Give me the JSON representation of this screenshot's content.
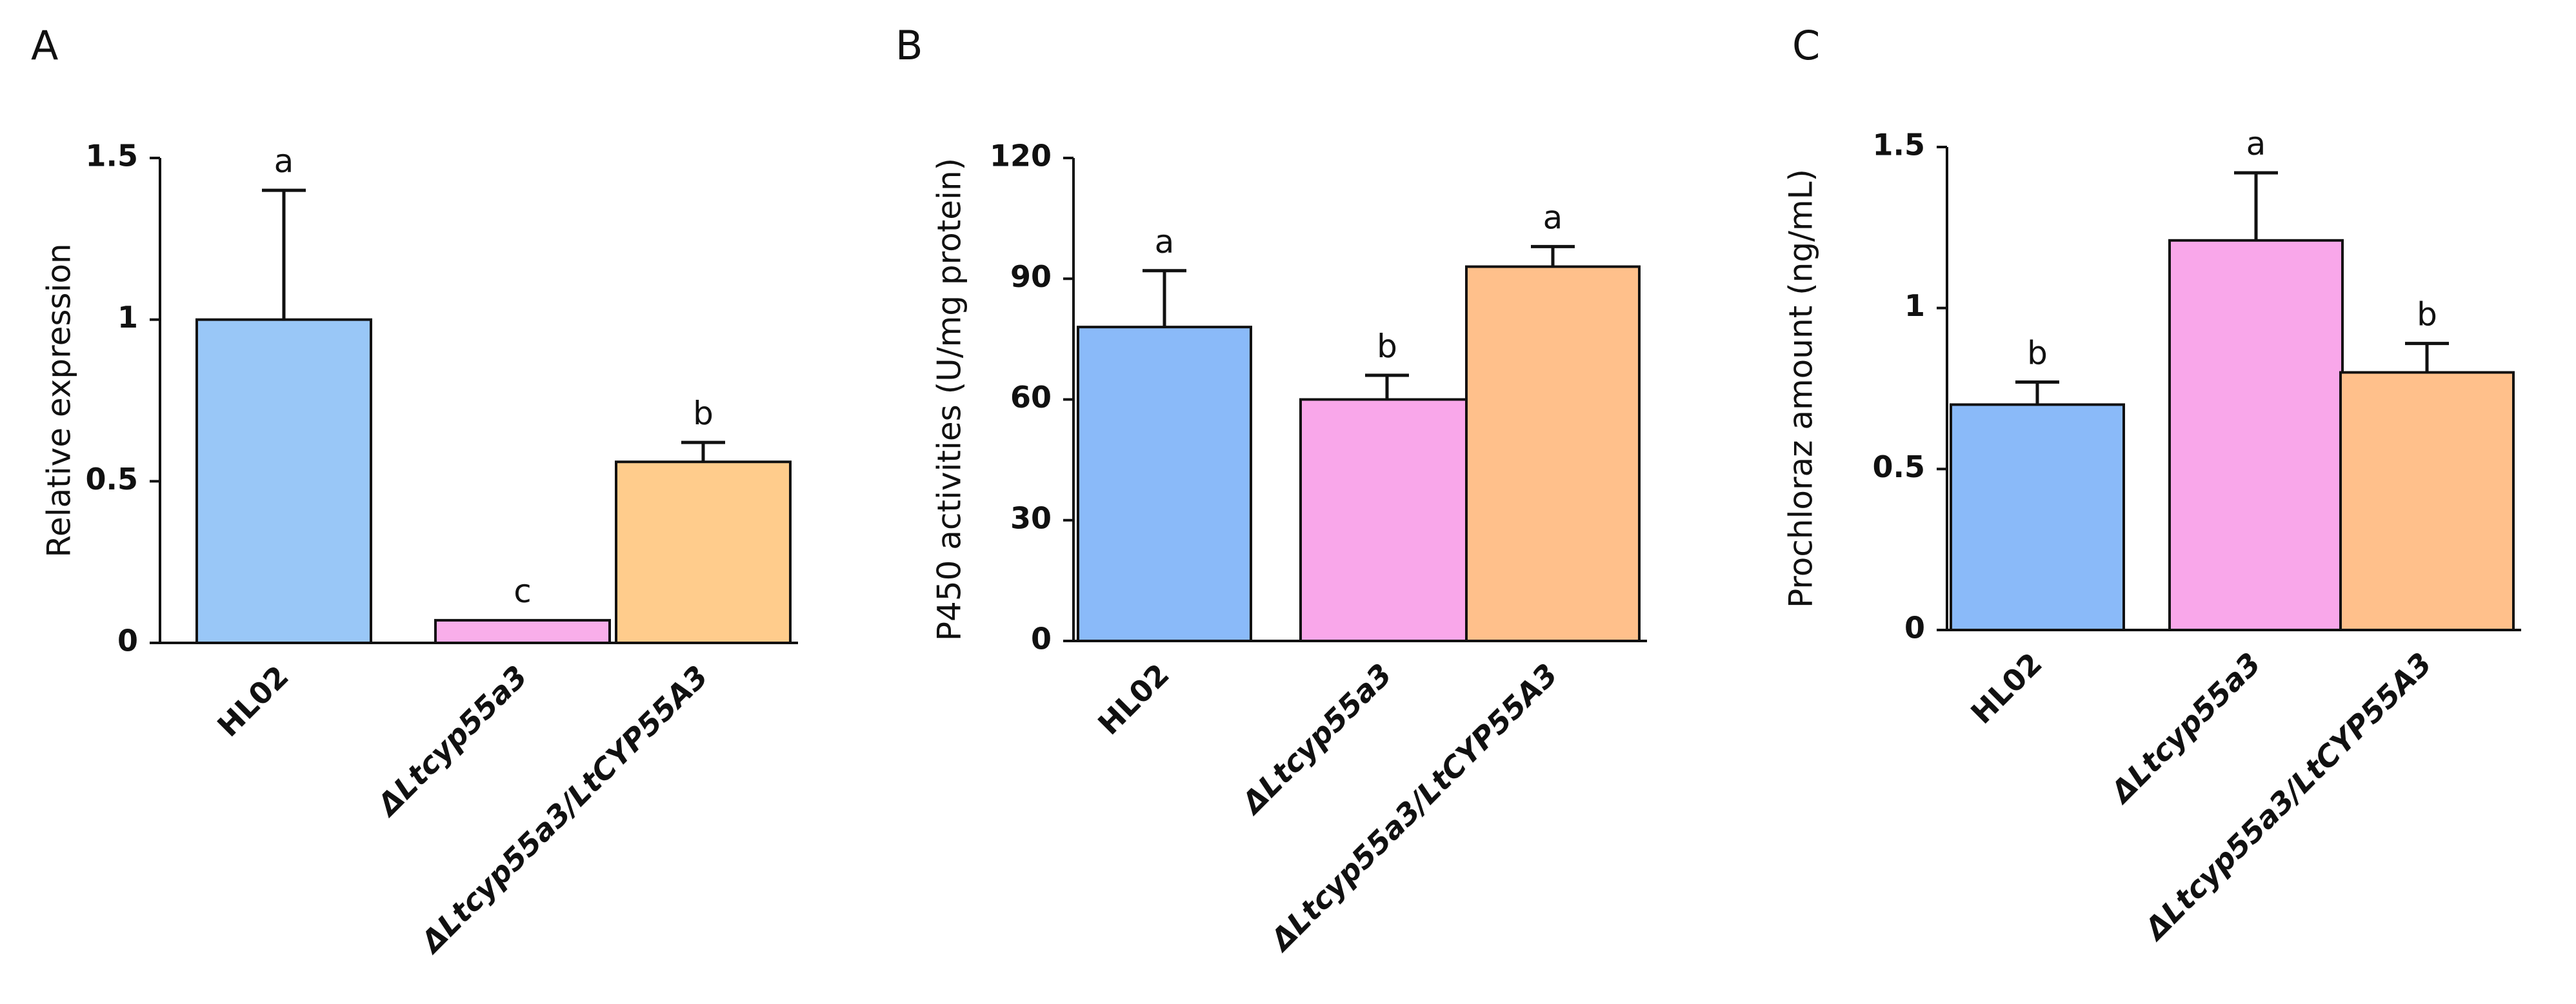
{
  "chart_data": [
    {
      "panel": "A",
      "type": "bar",
      "title": "",
      "xlabel": "",
      "ylabel": "Relative expression",
      "ylim": [
        0,
        1.5
      ],
      "yticks": [
        0,
        0.5,
        1,
        1.5
      ],
      "ytick_labels": [
        "0",
        "0.5",
        "1",
        "1.5"
      ],
      "categories": [
        "HL02",
        "ΔLtcyp55a3",
        "ΔLtcyp55a3/LtCYP55A3"
      ],
      "category_italic": [
        false,
        true,
        true
      ],
      "values": [
        1.0,
        0.07,
        0.56
      ],
      "errors": [
        0.4,
        0.0,
        0.06
      ],
      "significance": [
        "a",
        "c",
        "b"
      ],
      "colors": [
        "#99C7F7",
        "#F9AEEA",
        "#FFCC8C"
      ]
    },
    {
      "panel": "B",
      "type": "bar",
      "title": "",
      "xlabel": "",
      "ylabel": "P450 activities (U/mg protein)",
      "ylim": [
        0,
        120
      ],
      "yticks": [
        0,
        30,
        60,
        90,
        120
      ],
      "ytick_labels": [
        "0",
        "30",
        "60",
        "90",
        "120"
      ],
      "categories": [
        "HL02",
        "ΔLtcyp55a3",
        "ΔLtcyp55a3/LtCYP55A3"
      ],
      "category_italic": [
        false,
        true,
        true
      ],
      "values": [
        78,
        60,
        93
      ],
      "errors": [
        14,
        6,
        5
      ],
      "significance": [
        "a",
        "b",
        "a"
      ],
      "colors": [
        "#8ABAF9",
        "#F9A7EA",
        "#FFC08B"
      ]
    },
    {
      "panel": "C",
      "type": "bar",
      "title": "",
      "xlabel": "",
      "ylabel": "Prochloraz amount (ng/mL)",
      "ylim": [
        0,
        1.5
      ],
      "yticks": [
        0,
        0.5,
        1,
        1.5
      ],
      "ytick_labels": [
        "0",
        "0.5",
        "1",
        "1.5"
      ],
      "categories": [
        "HL02",
        "ΔLtcyp55a3",
        "ΔLtcyp55a3/LtCYP55A3"
      ],
      "category_italic": [
        false,
        true,
        true
      ],
      "values": [
        0.7,
        1.21,
        0.8
      ],
      "errors": [
        0.07,
        0.21,
        0.09
      ],
      "significance": [
        "b",
        "a",
        "b"
      ],
      "colors": [
        "#8ABAF9",
        "#F9A7EA",
        "#FFC08B"
      ]
    }
  ]
}
